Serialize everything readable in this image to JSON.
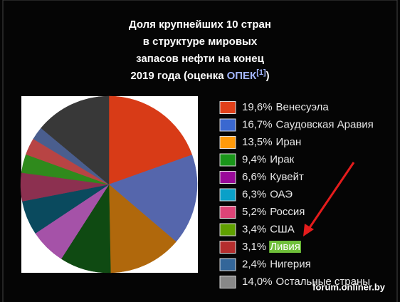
{
  "chart_data": {
    "type": "pie",
    "title": {
      "lines": [
        "Доля крупнейших 10 стран",
        "в структуре мировых",
        "запасов нефти на конец"
      ],
      "last": "2019 года (оценка",
      "link": "ОПЕК",
      "ref": "[1]",
      "close": ")"
    },
    "categories": [
      "Венесуэла",
      "Саудовская Аравия",
      "Иран",
      "Ирак",
      "Кувейт",
      "ОАЭ",
      "Россия",
      "США",
      "Ливия",
      "Нигерия",
      "Остальные страны"
    ],
    "values": [
      19.6,
      16.7,
      13.5,
      9.4,
      6.6,
      6.3,
      5.2,
      3.4,
      3.1,
      2.4,
      14.0
    ],
    "value_labels": [
      "19,6%",
      "16,7%",
      "13,5%",
      "9,4%",
      "6,6%",
      "6,3%",
      "5,2%",
      "3,4%",
      "3,1%",
      "2,4%",
      "14,0%"
    ],
    "colors": [
      "#e0401a",
      "#3a68d0",
      "#ff9a0a",
      "#1a961a",
      "#990a99",
      "#0aa0c8",
      "#dd4477",
      "#60a000",
      "#b52e2e",
      "#336699",
      "#888888"
    ],
    "pie_colors": [
      "#d83b17",
      "#5566ac",
      "#b0680c",
      "#0f4a12",
      "#a552a8",
      "#0a4a5e",
      "#8c3050",
      "#2f8a1c",
      "#b84444",
      "#4a5e8e",
      "#383838"
    ],
    "highlight": "Ливия",
    "watermark": "forum.onliner.by"
  }
}
